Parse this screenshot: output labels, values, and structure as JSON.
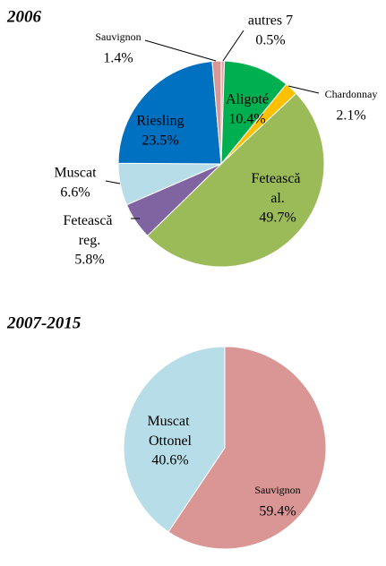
{
  "chart_data": [
    {
      "type": "pie",
      "title": "2006",
      "categories": [
        "autres 7",
        "Aligoté",
        "Chardonnay",
        "Fetească al.",
        "Fetească reg.",
        "Muscat",
        "Riesling",
        "Sauvignon"
      ],
      "values": [
        0.5,
        10.4,
        2.1,
        49.7,
        5.8,
        6.6,
        23.5,
        1.4
      ],
      "value_labels": [
        "0.5%",
        "10.4%",
        "2.1%",
        "49.7%",
        "5.8%",
        "6.6%",
        "23.5%",
        "1.4%"
      ],
      "colors": [
        "#e6a5a4",
        "#00b050",
        "#ffc000",
        "#9bbb59",
        "#8064a2",
        "#b7dde8",
        "#0070c0",
        "#d99694"
      ]
    },
    {
      "type": "pie",
      "title": "2007-2015",
      "categories": [
        "Sauvignon",
        "Muscat Ottonel"
      ],
      "values": [
        59.4,
        40.6
      ],
      "value_labels": [
        "59.4%",
        "40.6%"
      ],
      "colors": [
        "#d99694",
        "#b7dde8"
      ]
    }
  ]
}
